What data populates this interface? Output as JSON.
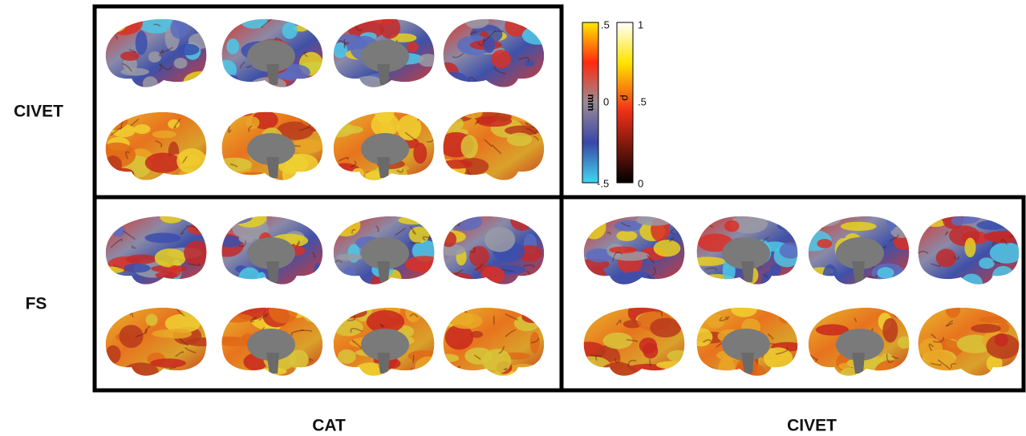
{
  "row_labels": [
    "CIVET",
    "FS"
  ],
  "column_labels": [
    "CAT",
    "CIVET"
  ],
  "colorbars": [
    {
      "label": "mm",
      "ticks": [
        ".5",
        "0",
        "-.5"
      ]
    },
    {
      "label": "ρ",
      "ticks": [
        "1",
        ".5",
        "0"
      ]
    }
  ]
}
